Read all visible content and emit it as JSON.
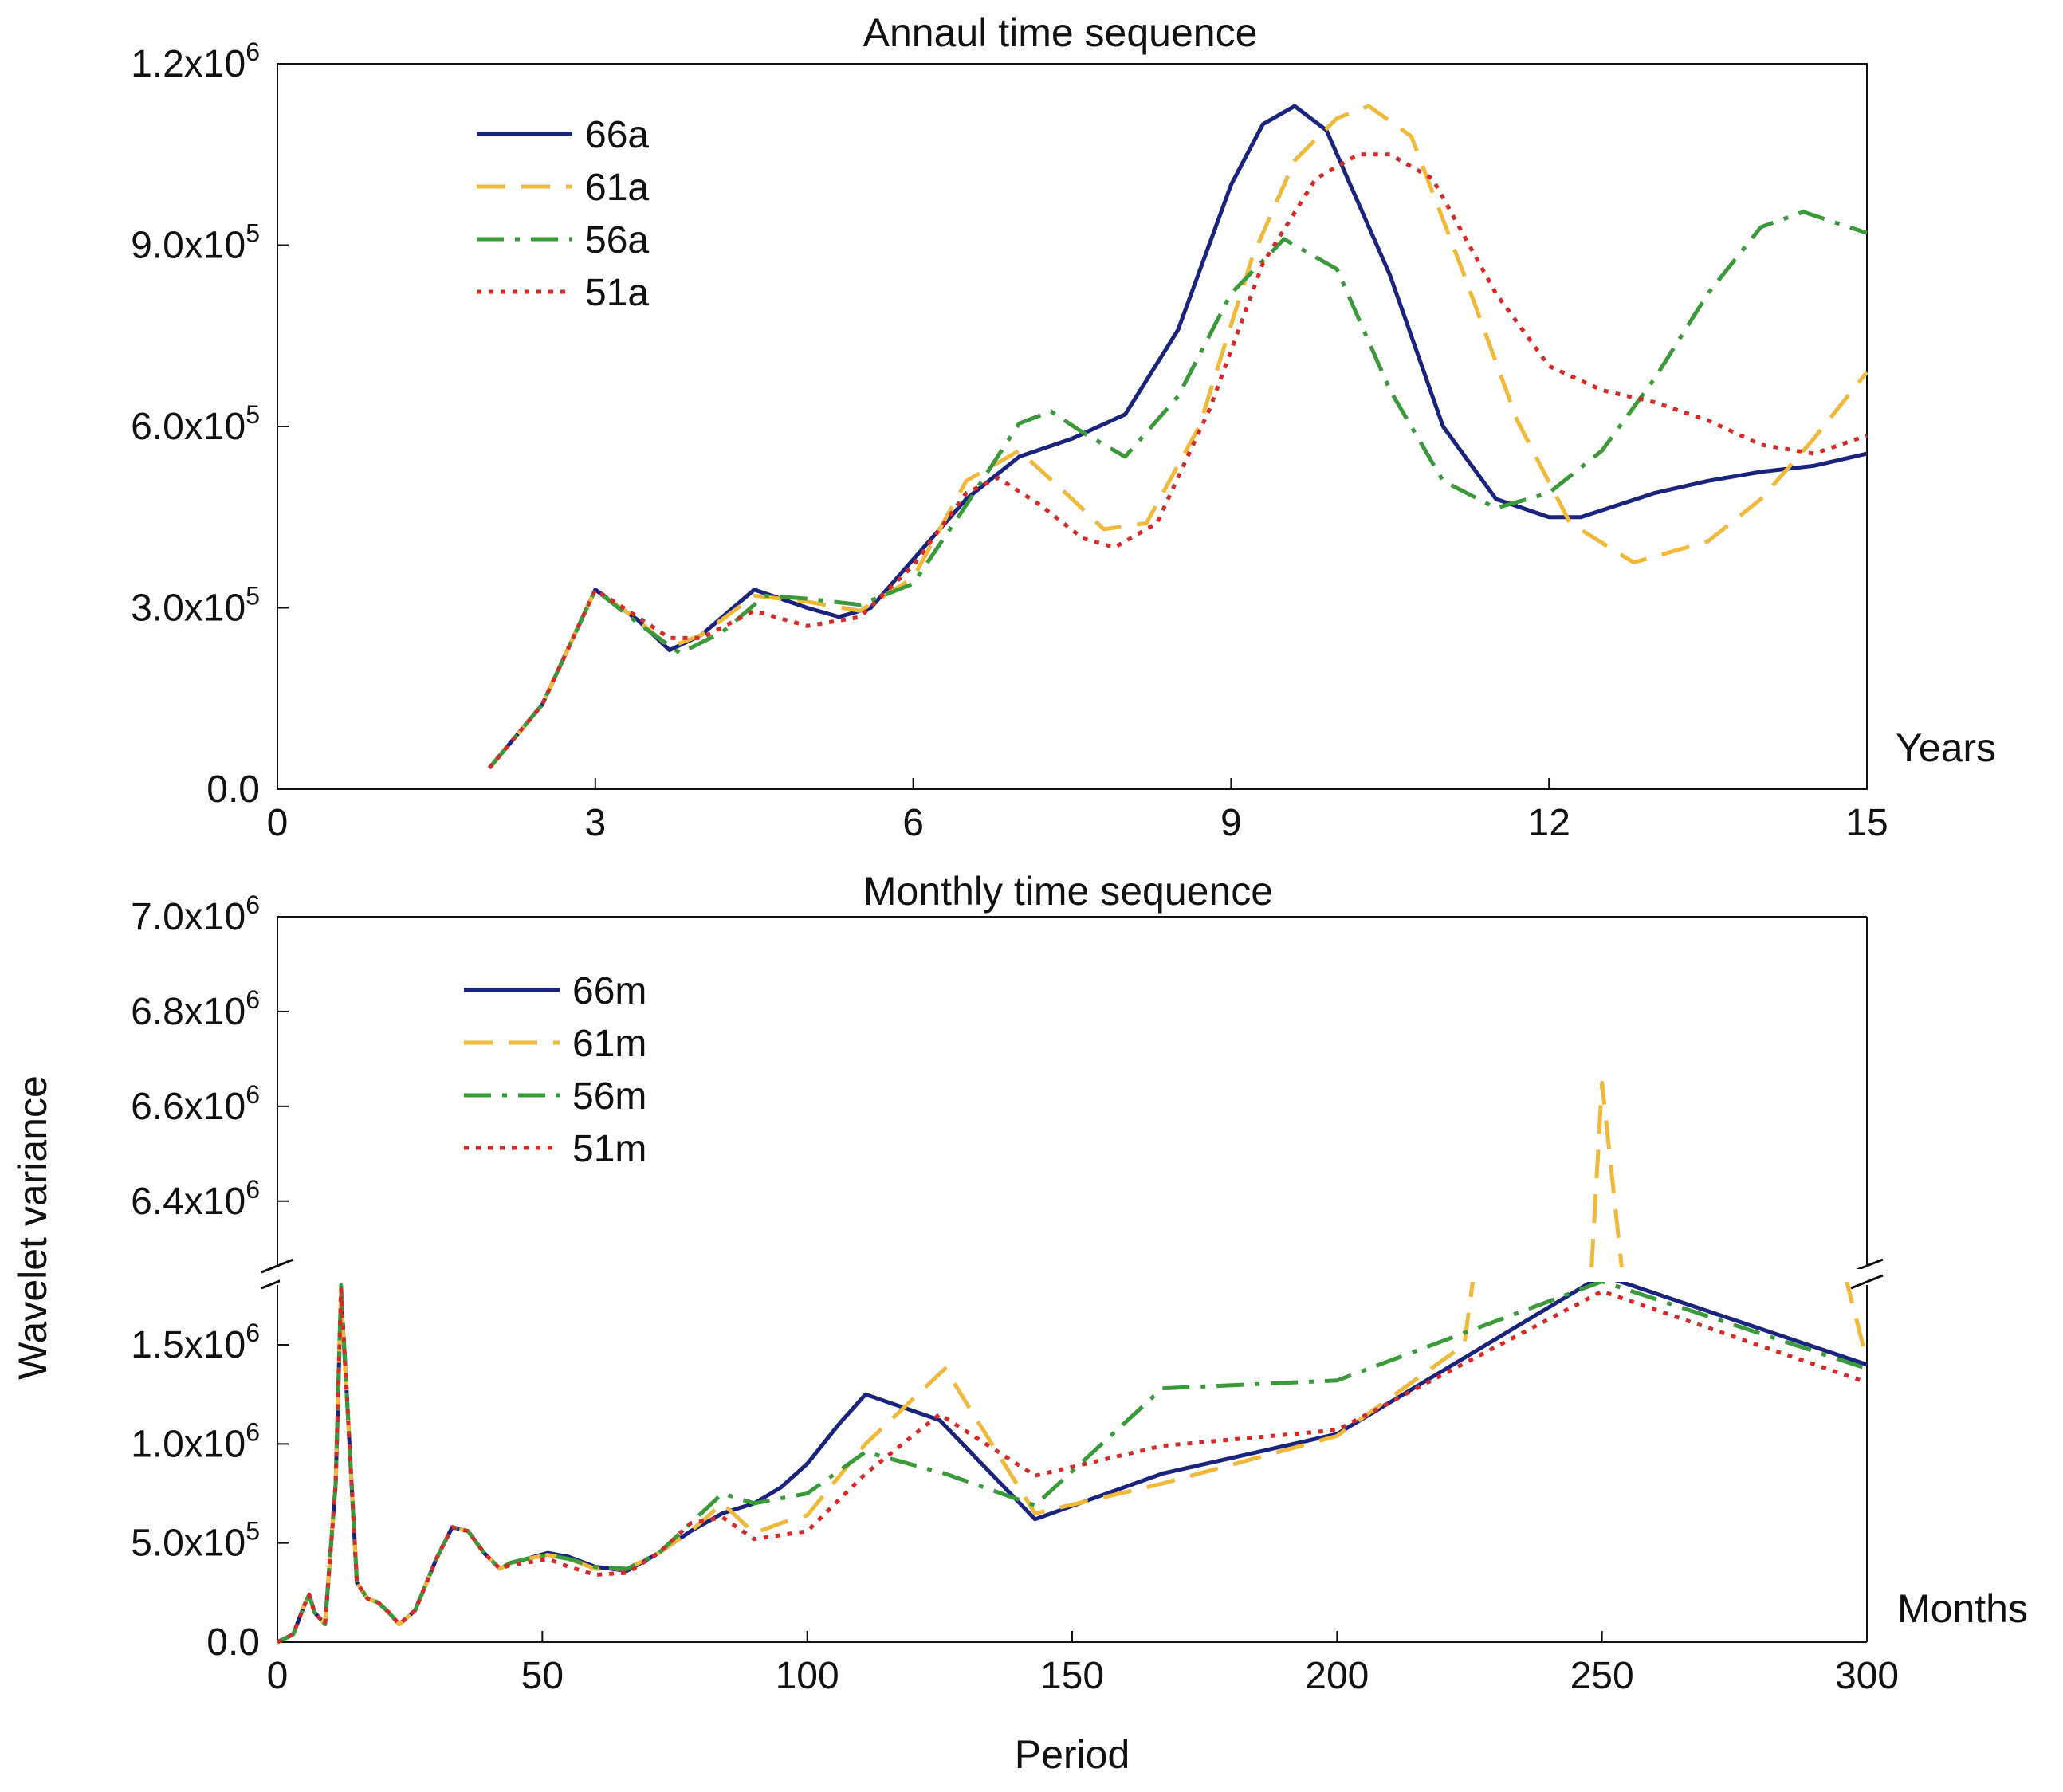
{
  "colors": {
    "66": "#1a237e",
    "61": "#f0b93a",
    "56": "#3a9a3a",
    "51": "#d42a2a"
  },
  "ylabel": "Wavelet variance",
  "xlabel": "Period",
  "chart_data": [
    {
      "type": "line",
      "title": "Annaul time sequence",
      "x_unit_label": "Years",
      "xlim": [
        0,
        15
      ],
      "ylim": [
        0,
        1200000
      ],
      "xticks": [
        0,
        3,
        6,
        9,
        12,
        15
      ],
      "xtick_labels": [
        "0",
        "3",
        "6",
        "9",
        "12",
        "15"
      ],
      "yticks": [
        {
          "value": 0,
          "mantissa": "0.0",
          "exp": ""
        },
        {
          "value": 300000,
          "mantissa": "3.0x10",
          "exp": "5"
        },
        {
          "value": 600000,
          "mantissa": "6.0x10",
          "exp": "5"
        },
        {
          "value": 900000,
          "mantissa": "9.0x10",
          "exp": "5"
        },
        {
          "value": 1200000,
          "mantissa": "1.2x10",
          "exp": "6"
        }
      ],
      "series": [
        {
          "name": "66a",
          "key": "66",
          "dash": "solid",
          "x": [
            2,
            2.5,
            3,
            3.4,
            3.7,
            4.0,
            4.5,
            5.0,
            5.3,
            5.6,
            6.0,
            6.5,
            7.0,
            7.5,
            8.0,
            8.5,
            9.0,
            9.3,
            9.6,
            9.9,
            10.5,
            11.0,
            11.5,
            12.0,
            12.3,
            13.0,
            13.5,
            14.0,
            14.5,
            15.0
          ],
          "values": [
            35000,
            140000,
            330000,
            280000,
            230000,
            255000,
            330000,
            300000,
            285000,
            300000,
            380000,
            480000,
            550000,
            580000,
            620000,
            760000,
            1000000,
            1100000,
            1130000,
            1090000,
            850000,
            600000,
            480000,
            450000,
            450000,
            490000,
            510000,
            525000,
            535000,
            555000
          ]
        },
        {
          "name": "61a",
          "key": "61",
          "dash": "dash",
          "x": [
            2,
            2.5,
            3,
            3.4,
            3.7,
            4.0,
            4.5,
            5.0,
            5.5,
            6.0,
            6.5,
            7.0,
            7.5,
            7.8,
            8.2,
            8.7,
            9.2,
            9.6,
            10.0,
            10.3,
            10.7,
            11.2,
            11.7,
            12.2,
            12.8,
            13.5,
            14.0,
            14.5,
            15.0
          ],
          "values": [
            35000,
            140000,
            330000,
            280000,
            235000,
            255000,
            320000,
            310000,
            295000,
            350000,
            510000,
            560000,
            480000,
            430000,
            440000,
            600000,
            880000,
            1040000,
            1110000,
            1130000,
            1080000,
            850000,
            610000,
            440000,
            375000,
            410000,
            480000,
            580000,
            690000
          ]
        },
        {
          "name": "56a",
          "key": "56",
          "dash": "dashdot",
          "x": [
            2,
            2.5,
            3,
            3.4,
            3.8,
            4.2,
            4.6,
            5.0,
            5.5,
            6.0,
            6.5,
            7.0,
            7.3,
            7.6,
            8.0,
            8.5,
            9.0,
            9.5,
            10.0,
            10.5,
            11.0,
            11.5,
            12.0,
            12.5,
            13.0,
            13.5,
            14.0,
            14.4,
            15.0
          ],
          "values": [
            35000,
            140000,
            330000,
            275000,
            225000,
            260000,
            320000,
            315000,
            305000,
            340000,
            470000,
            605000,
            625000,
            590000,
            550000,
            650000,
            820000,
            910000,
            860000,
            660000,
            510000,
            465000,
            490000,
            560000,
            680000,
            820000,
            930000,
            955000,
            920000
          ]
        },
        {
          "name": "51a",
          "key": "51",
          "dash": "dot",
          "x": [
            2,
            2.5,
            3,
            3.4,
            3.7,
            4.0,
            4.5,
            5.0,
            5.5,
            6.0,
            6.5,
            6.8,
            7.2,
            7.6,
            7.9,
            8.3,
            8.8,
            9.3,
            9.8,
            10.2,
            10.5,
            10.9,
            11.5,
            12.0,
            12.5,
            13.0,
            13.5,
            14.0,
            14.5,
            15.0
          ],
          "values": [
            35000,
            140000,
            330000,
            285000,
            250000,
            250000,
            295000,
            270000,
            285000,
            370000,
            490000,
            515000,
            470000,
            415000,
            400000,
            440000,
            630000,
            870000,
            1010000,
            1050000,
            1050000,
            1010000,
            820000,
            700000,
            660000,
            640000,
            610000,
            570000,
            555000,
            585000
          ]
        }
      ],
      "legend": "top-left"
    },
    {
      "type": "line",
      "title": "Monthly time sequence",
      "x_unit_label": "Months",
      "xlim": [
        0,
        300
      ],
      "ylim_lower": [
        0,
        1850000
      ],
      "ylim_upper": [
        6260000,
        7000000
      ],
      "axis_break": true,
      "xticks": [
        0,
        50,
        100,
        150,
        200,
        250,
        300
      ],
      "xtick_labels": [
        "0",
        "50",
        "100",
        "150",
        "200",
        "250",
        "300"
      ],
      "yticks_lower": [
        {
          "value": 0,
          "mantissa": "0.0",
          "exp": ""
        },
        {
          "value": 500000,
          "mantissa": "5.0x10",
          "exp": "5"
        },
        {
          "value": 1000000,
          "mantissa": "1.0x10",
          "exp": "6"
        },
        {
          "value": 1500000,
          "mantissa": "1.5x10",
          "exp": "6"
        }
      ],
      "yticks_upper": [
        {
          "value": 6400000,
          "mantissa": "6.4x10",
          "exp": "6"
        },
        {
          "value": 6600000,
          "mantissa": "6.6x10",
          "exp": "6"
        },
        {
          "value": 6800000,
          "mantissa": "6.8x10",
          "exp": "6"
        },
        {
          "value": 7000000,
          "mantissa": "7.0x10",
          "exp": "6"
        }
      ],
      "series": [
        {
          "name": "66m",
          "key": "66",
          "dash": "solid",
          "x": [
            0,
            3,
            5,
            6,
            7,
            9,
            11,
            12,
            13,
            15,
            17,
            19,
            21,
            23,
            26,
            30,
            33,
            36,
            39,
            42,
            44,
            47,
            51,
            55,
            60,
            66,
            72,
            78,
            84,
            90,
            95,
            100,
            106,
            111,
            125,
            143,
            167,
            200,
            250,
            300
          ],
          "values": [
            0,
            40000,
            180000,
            240000,
            150000,
            90000,
            800000,
            1750000,
            1300000,
            300000,
            220000,
            200000,
            150000,
            90000,
            160000,
            420000,
            580000,
            560000,
            450000,
            370000,
            400000,
            420000,
            450000,
            430000,
            380000,
            360000,
            450000,
            560000,
            650000,
            700000,
            780000,
            900000,
            1100000,
            1250000,
            1120000,
            620000,
            850000,
            1050000,
            1850000,
            1400000
          ]
        },
        {
          "name": "61m",
          "key": "61",
          "dash": "dash",
          "x": [
            0,
            3,
            5,
            6,
            7,
            9,
            11,
            12,
            13,
            15,
            17,
            19,
            21,
            23,
            26,
            30,
            33,
            36,
            39,
            42,
            44,
            47,
            51,
            55,
            60,
            66,
            72,
            78,
            84,
            90,
            95,
            100,
            111,
            126,
            143,
            167,
            200,
            224,
            250,
            300
          ],
          "values": [
            0,
            40000,
            180000,
            240000,
            150000,
            90000,
            800000,
            1750000,
            1300000,
            300000,
            220000,
            200000,
            150000,
            90000,
            160000,
            420000,
            580000,
            560000,
            450000,
            370000,
            400000,
            420000,
            440000,
            420000,
            370000,
            370000,
            450000,
            560000,
            700000,
            550000,
            600000,
            640000,
            1000000,
            1380000,
            650000,
            800000,
            1040000,
            1500000,
            6650000,
            1420000
          ]
        },
        {
          "name": "56m",
          "key": "56",
          "dash": "dashdot",
          "x": [
            0,
            3,
            5,
            6,
            7,
            9,
            11,
            12,
            13,
            15,
            17,
            19,
            21,
            23,
            26,
            30,
            33,
            36,
            39,
            42,
            44,
            47,
            51,
            55,
            60,
            66,
            72,
            78,
            84,
            90,
            100,
            111,
            126,
            143,
            167,
            200,
            250,
            300
          ],
          "values": [
            0,
            40000,
            180000,
            240000,
            150000,
            90000,
            800000,
            1800000,
            1300000,
            300000,
            220000,
            200000,
            150000,
            90000,
            160000,
            420000,
            580000,
            560000,
            450000,
            370000,
            400000,
            420000,
            440000,
            420000,
            380000,
            370000,
            450000,
            600000,
            750000,
            700000,
            750000,
            960000,
            850000,
            690000,
            1280000,
            1320000,
            1820000,
            1380000
          ]
        },
        {
          "name": "51m",
          "key": "51",
          "dash": "dot",
          "x": [
            0,
            3,
            5,
            6,
            7,
            9,
            11,
            12,
            13,
            15,
            17,
            19,
            21,
            23,
            26,
            30,
            33,
            36,
            39,
            42,
            44,
            47,
            51,
            55,
            60,
            66,
            72,
            78,
            84,
            90,
            100,
            111,
            125,
            143,
            167,
            200,
            250,
            300
          ],
          "values": [
            0,
            40000,
            180000,
            240000,
            150000,
            90000,
            800000,
            1780000,
            1300000,
            300000,
            220000,
            200000,
            150000,
            90000,
            160000,
            420000,
            580000,
            560000,
            450000,
            370000,
            390000,
            400000,
            420000,
            380000,
            340000,
            350000,
            450000,
            600000,
            630000,
            520000,
            560000,
            850000,
            1150000,
            840000,
            990000,
            1070000,
            1770000,
            1310000
          ]
        }
      ],
      "legend": "top-left"
    }
  ]
}
